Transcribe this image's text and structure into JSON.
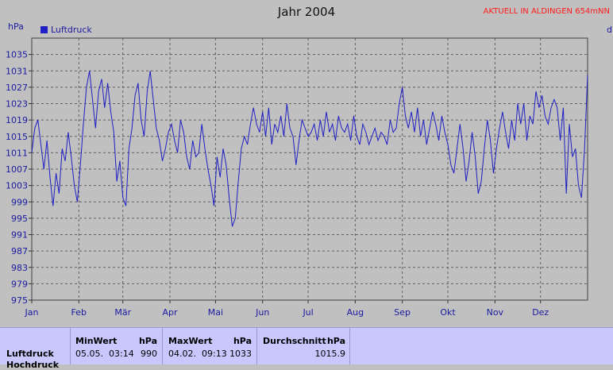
{
  "header": {
    "title": "Jahr 2004",
    "banner": "AKTUELL IN ALDINGEN 654mNN",
    "unit": "hPa",
    "right_cut": "d"
  },
  "chart_data": {
    "type": "line",
    "title": "Jahr 2004",
    "ylabel": "hPa",
    "ylim": [
      975,
      1039
    ],
    "yticks": [
      975,
      979,
      983,
      987,
      991,
      995,
      999,
      1003,
      1007,
      1011,
      1015,
      1019,
      1023,
      1027,
      1031,
      1035
    ],
    "xticks": [
      "Jan",
      "Feb",
      "Mär",
      "Apr",
      "Mai",
      "Jun",
      "Jul",
      "Aug",
      "Sep",
      "Okt",
      "Nov",
      "Dez"
    ],
    "grid": true,
    "legend": "top-left",
    "series": [
      {
        "name": "Luftdruck",
        "color": "#1f1fc4",
        "x": [
          0,
          2,
          4,
          6,
          8,
          10,
          12,
          14,
          16,
          18,
          20,
          22,
          24,
          26,
          28,
          30,
          32,
          34,
          36,
          38,
          40,
          42,
          44,
          46,
          48,
          50,
          52,
          54,
          56,
          58,
          60,
          62,
          64,
          66,
          68,
          70,
          72,
          74,
          76,
          78,
          80,
          82,
          84,
          86,
          88,
          90,
          92,
          94,
          96,
          98,
          100,
          102,
          104,
          106,
          108,
          110,
          112,
          114,
          116,
          118,
          120,
          122,
          124,
          126,
          128,
          130,
          132,
          134,
          136,
          138,
          140,
          142,
          144,
          146,
          148,
          150,
          152,
          154,
          156,
          158,
          160,
          162,
          164,
          166,
          168,
          170,
          172,
          174,
          176,
          178,
          180,
          182,
          184,
          186,
          188,
          190,
          192,
          194,
          196,
          198,
          200,
          202,
          204,
          206,
          208,
          210,
          212,
          214,
          216,
          218,
          220,
          222,
          224,
          226,
          228,
          230,
          232,
          234,
          236,
          238,
          240,
          242,
          244,
          246,
          248,
          250,
          252,
          254,
          256,
          258,
          260,
          262,
          264,
          266,
          268,
          270,
          272,
          274,
          276,
          278,
          280,
          282,
          284,
          286,
          288,
          290,
          292,
          294,
          296,
          298,
          300,
          302,
          304,
          306,
          308,
          310,
          312,
          314,
          316,
          318,
          320,
          322,
          324,
          326,
          328,
          330,
          332,
          334,
          336,
          338,
          340,
          342,
          344,
          346,
          348,
          350,
          352,
          354,
          356,
          358,
          360,
          362,
          364,
          366
        ],
        "values": [
          1011,
          1017,
          1019,
          1013,
          1007,
          1014,
          1005,
          998,
          1006,
          1001,
          1012,
          1009,
          1016,
          1010,
          1003,
          999,
          1008,
          1018,
          1027,
          1031,
          1024,
          1017,
          1026,
          1029,
          1022,
          1028,
          1021,
          1016,
          1004,
          1009,
          1000,
          998,
          1012,
          1017,
          1025,
          1028,
          1019,
          1015,
          1026,
          1031,
          1024,
          1017,
          1014,
          1009,
          1012,
          1016,
          1018,
          1014,
          1011,
          1019,
          1016,
          1010,
          1007,
          1014,
          1010,
          1011,
          1018,
          1012,
          1007,
          1003,
          998,
          1010,
          1005,
          1012,
          1008,
          1000,
          993,
          995,
          1004,
          1012,
          1015,
          1013,
          1018,
          1022,
          1018,
          1016,
          1021,
          1015,
          1022,
          1013,
          1018,
          1016,
          1020,
          1015,
          1023,
          1017,
          1015,
          1008,
          1014,
          1019,
          1017,
          1015,
          1016,
          1018,
          1014,
          1019,
          1015,
          1021,
          1016,
          1018,
          1014,
          1020,
          1017,
          1016,
          1018,
          1014,
          1020,
          1015,
          1013,
          1018,
          1016,
          1013,
          1015,
          1017,
          1014,
          1016,
          1015,
          1013,
          1019,
          1016,
          1017,
          1023,
          1027,
          1020,
          1017,
          1021,
          1016,
          1022,
          1015,
          1019,
          1013,
          1017,
          1021,
          1018,
          1014,
          1020,
          1016,
          1013,
          1008,
          1006,
          1012,
          1018,
          1012,
          1004,
          1009,
          1016,
          1010,
          1001,
          1004,
          1012,
          1019,
          1014,
          1006,
          1012,
          1017,
          1021,
          1016,
          1012,
          1019,
          1014,
          1023,
          1018,
          1023,
          1014,
          1020,
          1018,
          1026,
          1022,
          1025,
          1020,
          1018,
          1022,
          1024,
          1022,
          1014,
          1022,
          1001,
          1018,
          1010,
          1012,
          1003,
          1000,
          1012,
          1030
        ]
      }
    ]
  },
  "stats": {
    "row_label": "Luftdruck",
    "row_label_2": "Hochdruck",
    "min": {
      "header": "MinWert",
      "unit": "hPa",
      "date": "05.05.",
      "time": "03:14",
      "value": "990"
    },
    "max": {
      "header": "MaxWert",
      "unit": "hPa",
      "date": "04.02.",
      "time": "09:13",
      "value": "1033"
    },
    "avg": {
      "header": "Durchschnitt",
      "unit": "hPa",
      "value": "1015.9"
    }
  }
}
